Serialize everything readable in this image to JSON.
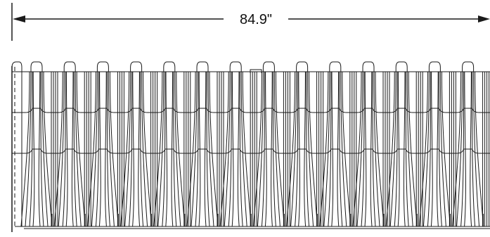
{
  "dimension": {
    "label": "84.9\""
  },
  "drawing": {
    "ink_color": "#1a1a1a",
    "background_color": "#ffffff",
    "corrugation_count": 14
  }
}
